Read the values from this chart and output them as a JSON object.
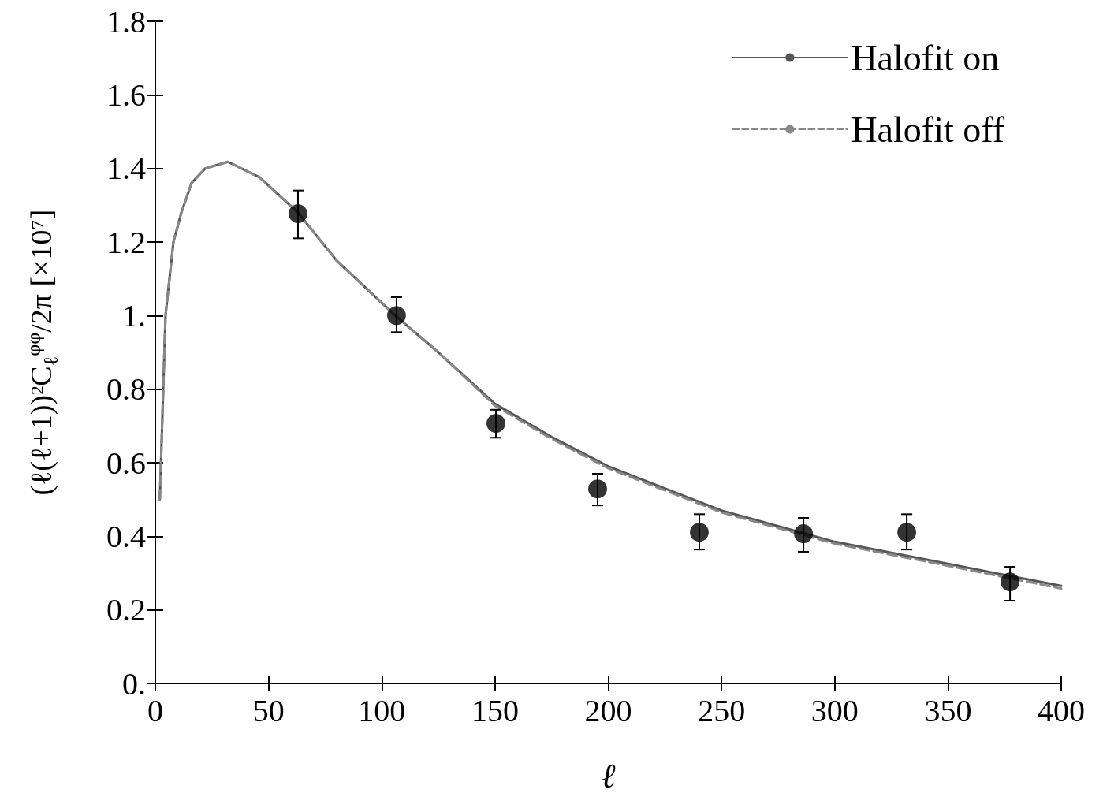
{
  "chart_data": {
    "type": "line",
    "xlabel": "ℓ",
    "ylabel": "(ℓ(ℓ+1))²C$_{ℓ}$$^{φφ}$/2π [×10⁷]",
    "xlim": [
      0,
      400
    ],
    "xticks": [
      0,
      50,
      100,
      150,
      200,
      250,
      300,
      350,
      400
    ],
    "ylim": [
      0,
      1.8
    ],
    "yticks": [
      {
        "value": 0,
        "label": "0."
      },
      0.2,
      0.4,
      0.6,
      0.8,
      {
        "value": 1,
        "label": "1."
      },
      1.2,
      1.4,
      1.6,
      1.8
    ],
    "grid": false,
    "legend": "top right",
    "series": [
      {
        "name": "Halofit on",
        "line_style": "solid",
        "marker": "none",
        "color": "#555555",
        "x": [
          2,
          4.5,
          8,
          11.5,
          16,
          22,
          32,
          46,
          63,
          80,
          106,
          125,
          150,
          175,
          200,
          250,
          300,
          350,
          400
        ],
        "values": [
          0.5,
          1.0,
          1.2,
          1.28,
          1.36,
          1.4,
          1.418,
          1.376,
          1.28,
          1.15,
          1.0,
          0.9,
          0.76,
          0.67,
          0.59,
          0.47,
          0.385,
          0.325,
          0.265
        ]
      },
      {
        "name": "Halofit off",
        "line_style": "dashed",
        "marker": "none",
        "color": "#888888",
        "x": [
          2,
          4.5,
          8,
          11.5,
          16,
          22,
          32,
          46,
          63,
          80,
          106,
          125,
          150,
          175,
          200,
          250,
          300,
          350,
          400
        ],
        "values": [
          0.5,
          1.0,
          1.2,
          1.28,
          1.36,
          1.4,
          1.418,
          1.376,
          1.28,
          1.15,
          1.0,
          0.9,
          0.755,
          0.665,
          0.585,
          0.465,
          0.38,
          0.32,
          0.258
        ]
      },
      {
        "type": "scatter",
        "marker": "circle",
        "color": "#000000",
        "x": [
          63,
          106.5,
          150.4,
          195.3,
          240.2,
          286.2,
          331.8,
          377.4
        ],
        "values": [
          1.277,
          1.0,
          0.707,
          0.529,
          0.411,
          0.407,
          0.411,
          0.276
        ],
        "errors": [
          [
            1.21,
            1.34
          ],
          [
            0.955,
            1.05
          ],
          [
            0.668,
            0.744
          ],
          [
            0.484,
            0.57
          ],
          [
            0.364,
            0.46
          ],
          [
            0.358,
            0.45
          ],
          [
            0.364,
            0.46
          ],
          [
            0.225,
            0.317
          ]
        ]
      }
    ]
  }
}
